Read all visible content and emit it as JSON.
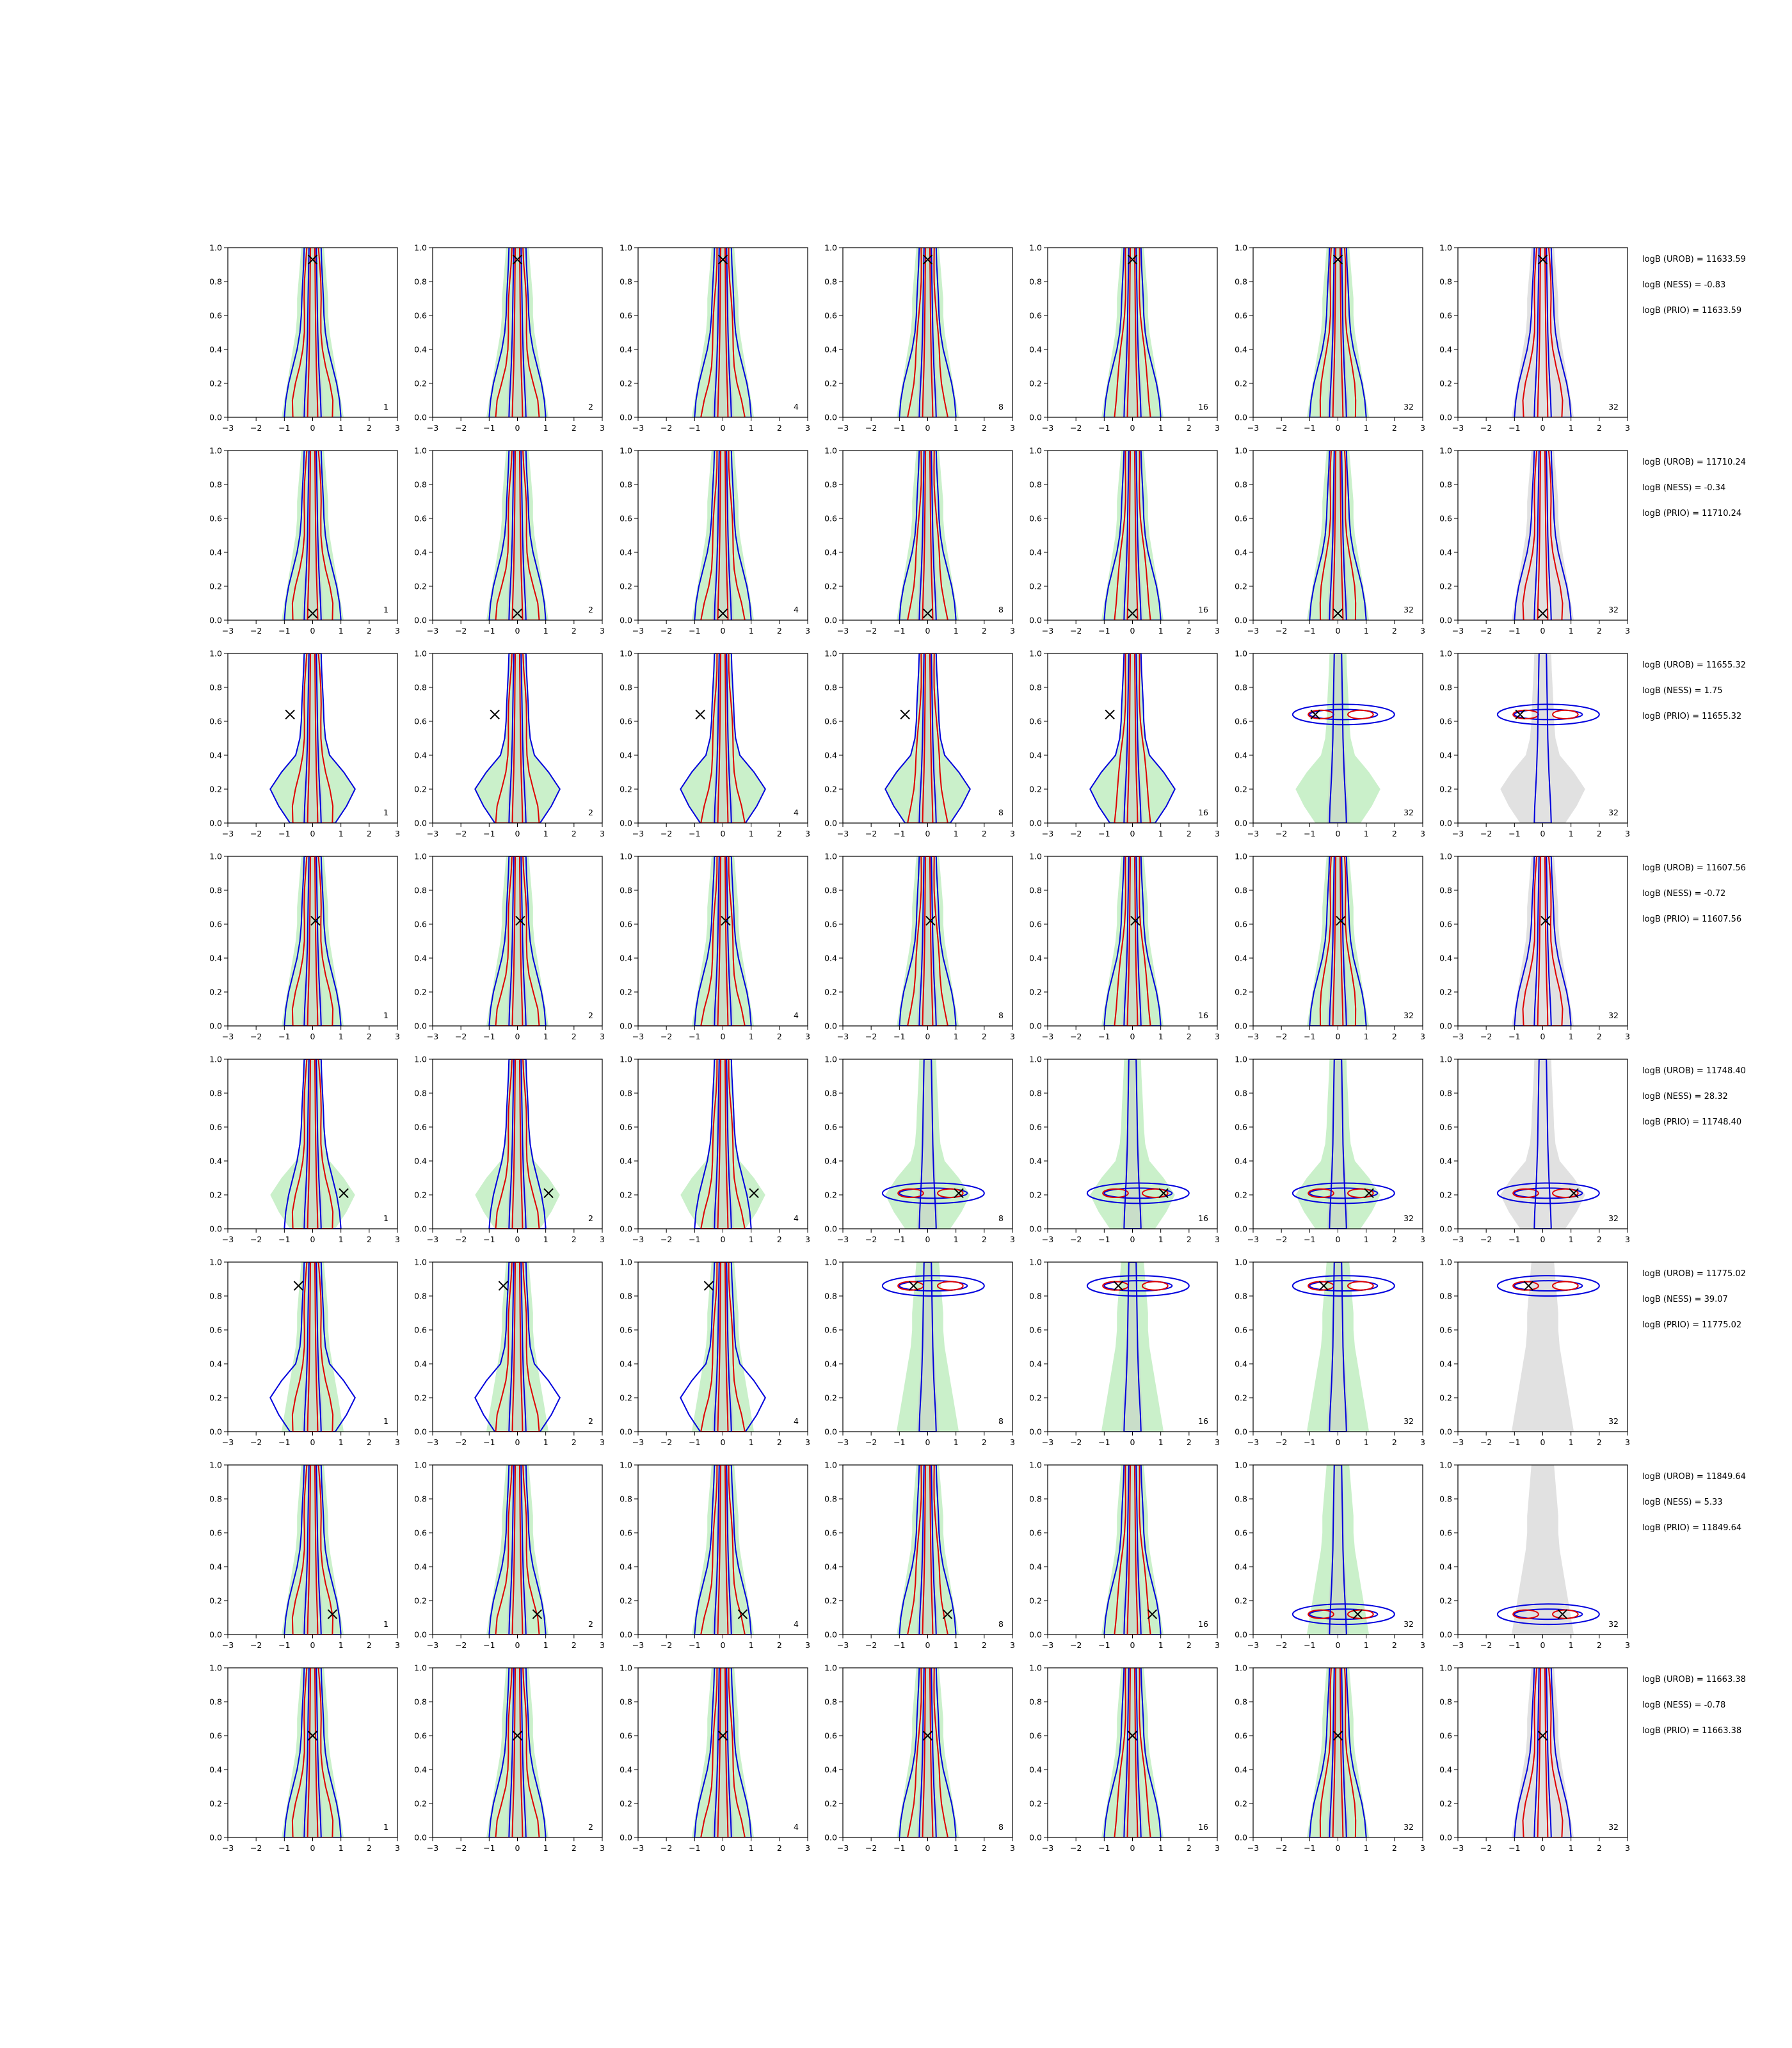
{
  "figure": {
    "background": "#ffffff",
    "colors": {
      "fill_green": "#9fe39f",
      "fill_gray": "#c8c8c8",
      "contour_red": "#e00000",
      "contour_blue": "#0000dd",
      "marker": "#000000"
    }
  },
  "chart_data": {
    "type": "contour",
    "title": "",
    "xlabel": "",
    "ylabel": "",
    "xlim": [
      -3,
      3
    ],
    "ylim": [
      0,
      1
    ],
    "xticks": [
      "−3",
      "−2",
      "−1",
      "0",
      "1",
      "2",
      "3"
    ],
    "yticks": [
      "0.0",
      "0.2",
      "0.4",
      "0.6",
      "0.8",
      "1.0"
    ],
    "column_annotations": [
      "1",
      "2",
      "4",
      "8",
      "16",
      "32",
      "32"
    ],
    "rows": [
      {
        "marker": {
          "x": 0.0,
          "y": 0.93
        },
        "stats": [
          "logB (UROB) = 11633.59",
          "logB (NESS) = -0.83",
          "logB (PRIO) = 11633.59"
        ]
      },
      {
        "marker": {
          "x": 0.0,
          "y": 0.04
        },
        "stats": [
          "logB (UROB) = 11710.24",
          "logB (NESS) = -0.34",
          "logB (PRIO) = 11710.24"
        ]
      },
      {
        "marker": {
          "x": -0.8,
          "y": 0.64
        },
        "stats": [
          "logB (UROB) = 11655.32",
          "logB (NESS) = 1.75",
          "logB (PRIO) = 11655.32"
        ]
      },
      {
        "marker": {
          "x": 0.1,
          "y": 0.62
        },
        "stats": [
          "logB (UROB) = 11607.56",
          "logB (NESS) = -0.72",
          "logB (PRIO) = 11607.56"
        ]
      },
      {
        "marker": {
          "x": 1.1,
          "y": 0.21
        },
        "stats": [
          "logB (UROB) = 11748.40",
          "logB (NESS) = 28.32",
          "logB (PRIO) = 11748.40"
        ]
      },
      {
        "marker": {
          "x": -0.5,
          "y": 0.86
        },
        "stats": [
          "logB (UROB) = 11775.02",
          "logB (NESS) = 39.07",
          "logB (PRIO) = 11775.02"
        ]
      },
      {
        "marker": {
          "x": 0.7,
          "y": 0.12
        },
        "stats": [
          "logB (UROB) = 11849.64",
          "logB (NESS) = 5.33",
          "logB (PRIO) = 11849.64"
        ]
      },
      {
        "marker": {
          "x": 0.0,
          "y": 0.6
        },
        "stats": [
          "logB (UROB) = 11663.38",
          "logB (NESS) = -0.78",
          "logB (PRIO) = 11663.38"
        ]
      }
    ]
  }
}
